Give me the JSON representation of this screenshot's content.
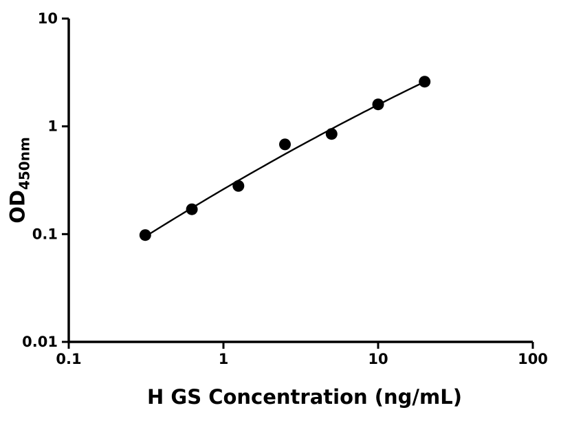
{
  "chart_data": {
    "type": "scatter",
    "title": "",
    "xlabel": "H GS Concentration (ng/mL)",
    "ylabel_main": "OD",
    "ylabel_sub": "450nm",
    "x_scale": "log",
    "y_scale": "log",
    "xlim": [
      0.1,
      100
    ],
    "ylim": [
      0.01,
      10
    ],
    "grid": false,
    "legend": null,
    "marker_color": "#000000",
    "line_color": "#000000",
    "x_ticks": [
      {
        "value": 0.1,
        "label": "0.1"
      },
      {
        "value": 1,
        "label": "1"
      },
      {
        "value": 10,
        "label": "10"
      },
      {
        "value": 100,
        "label": "100"
      }
    ],
    "y_ticks": [
      {
        "value": 0.01,
        "label": "0.01"
      },
      {
        "value": 0.1,
        "label": "0.1"
      },
      {
        "value": 1,
        "label": "1"
      },
      {
        "value": 10,
        "label": "10"
      }
    ],
    "points": [
      {
        "x": 0.3125,
        "y": 0.098
      },
      {
        "x": 0.625,
        "y": 0.17
      },
      {
        "x": 1.25,
        "y": 0.28
      },
      {
        "x": 2.5,
        "y": 0.68
      },
      {
        "x": 5,
        "y": 0.85
      },
      {
        "x": 10,
        "y": 1.6
      },
      {
        "x": 20,
        "y": 2.6
      }
    ],
    "trend_curve": {
      "type": "quadratic_loglog",
      "coefficients": [
        -0.5836,
        0.8403,
        -0.0567
      ],
      "x_range": [
        0.3125,
        20
      ]
    }
  }
}
